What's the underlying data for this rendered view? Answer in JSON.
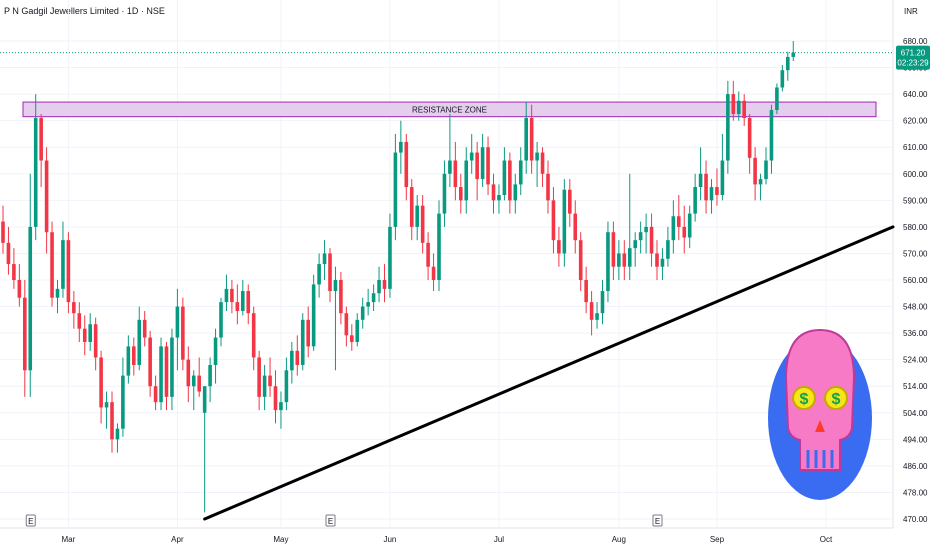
{
  "header": {
    "title": "P N Gadgil Jewellers Limited · 1D · NSE",
    "currency": "INR"
  },
  "price_tag": {
    "price": "671.20",
    "countdown": "02:23:29",
    "color": "#089981"
  },
  "colors": {
    "up": "#089981",
    "down": "#f23645",
    "zone_fill": "#e1c6ea",
    "zone_border": "#9c27b0",
    "trendline": "#000000"
  },
  "annotations": {
    "zone_label": "RESISTANCE ZONE",
    "event_marker": "E"
  },
  "decoration": {
    "sticker": "skull-with-dollar-eyes-icon"
  },
  "chart_data": {
    "type": "candlestick",
    "title": "P N Gadgil Jewellers Limited · 1D · NSE",
    "y_unit": "INR",
    "y_ticks": [
      470,
      478,
      486,
      494,
      504,
      514,
      524,
      536,
      548,
      560,
      570,
      580,
      590,
      600,
      610,
      620,
      640,
      660,
      680
    ],
    "x_ticks": [
      {
        "label": "Mar",
        "index": 12
      },
      {
        "label": "Apr",
        "index": 32
      },
      {
        "label": "May",
        "index": 51
      },
      {
        "label": "Jun",
        "index": 71
      },
      {
        "label": "Jul",
        "index": 91
      },
      {
        "label": "Aug",
        "index": 113
      },
      {
        "label": "Sep",
        "index": 131
      },
      {
        "label": "Oct",
        "index": 151
      }
    ],
    "resistance_zone": {
      "low": 623,
      "high": 634,
      "label": "RESISTANCE ZONE"
    },
    "trendline": [
      {
        "index": 37,
        "price": 470
      },
      {
        "index": 159,
        "price": 580
      }
    ],
    "earnings_markers": [
      5,
      60,
      120
    ],
    "last_price": 671.2,
    "candles": [
      {
        "o": 582,
        "h": 588,
        "l": 570,
        "c": 574
      },
      {
        "o": 574,
        "h": 580,
        "l": 562,
        "c": 566
      },
      {
        "o": 566,
        "h": 572,
        "l": 556,
        "c": 560
      },
      {
        "o": 560,
        "h": 566,
        "l": 548,
        "c": 552
      },
      {
        "o": 552,
        "h": 560,
        "l": 510,
        "c": 520
      },
      {
        "o": 520,
        "h": 600,
        "l": 510,
        "c": 580
      },
      {
        "o": 580,
        "h": 640,
        "l": 575,
        "c": 622
      },
      {
        "o": 622,
        "h": 625,
        "l": 595,
        "c": 605
      },
      {
        "o": 605,
        "h": 610,
        "l": 570,
        "c": 578
      },
      {
        "o": 578,
        "h": 582,
        "l": 548,
        "c": 552
      },
      {
        "o": 552,
        "h": 560,
        "l": 545,
        "c": 556
      },
      {
        "o": 556,
        "h": 582,
        "l": 552,
        "c": 575
      },
      {
        "o": 575,
        "h": 578,
        "l": 545,
        "c": 550
      },
      {
        "o": 550,
        "h": 555,
        "l": 538,
        "c": 545
      },
      {
        "o": 545,
        "h": 550,
        "l": 532,
        "c": 538
      },
      {
        "o": 538,
        "h": 544,
        "l": 526,
        "c": 532
      },
      {
        "o": 532,
        "h": 545,
        "l": 528,
        "c": 540
      },
      {
        "o": 540,
        "h": 543,
        "l": 520,
        "c": 525
      },
      {
        "o": 525,
        "h": 528,
        "l": 500,
        "c": 506
      },
      {
        "o": 506,
        "h": 512,
        "l": 498,
        "c": 508
      },
      {
        "o": 508,
        "h": 512,
        "l": 490,
        "c": 494
      },
      {
        "o": 494,
        "h": 500,
        "l": 490,
        "c": 498
      },
      {
        "o": 498,
        "h": 525,
        "l": 495,
        "c": 518
      },
      {
        "o": 518,
        "h": 535,
        "l": 515,
        "c": 530
      },
      {
        "o": 530,
        "h": 534,
        "l": 518,
        "c": 522
      },
      {
        "o": 522,
        "h": 548,
        "l": 520,
        "c": 542
      },
      {
        "o": 542,
        "h": 546,
        "l": 530,
        "c": 534
      },
      {
        "o": 534,
        "h": 537,
        "l": 510,
        "c": 514
      },
      {
        "o": 514,
        "h": 518,
        "l": 505,
        "c": 508
      },
      {
        "o": 508,
        "h": 534,
        "l": 505,
        "c": 530
      },
      {
        "o": 530,
        "h": 532,
        "l": 505,
        "c": 510
      },
      {
        "o": 510,
        "h": 538,
        "l": 505,
        "c": 534
      },
      {
        "o": 534,
        "h": 556,
        "l": 520,
        "c": 548
      },
      {
        "o": 548,
        "h": 552,
        "l": 520,
        "c": 524
      },
      {
        "o": 524,
        "h": 530,
        "l": 508,
        "c": 514
      },
      {
        "o": 514,
        "h": 520,
        "l": 505,
        "c": 518
      },
      {
        "o": 518,
        "h": 525,
        "l": 510,
        "c": 512
      },
      {
        "o": 504,
        "h": 514,
        "l": 472,
        "c": 514
      },
      {
        "o": 514,
        "h": 525,
        "l": 508,
        "c": 522
      },
      {
        "o": 522,
        "h": 538,
        "l": 515,
        "c": 534
      },
      {
        "o": 534,
        "h": 552,
        "l": 530,
        "c": 550
      },
      {
        "o": 550,
        "h": 562,
        "l": 546,
        "c": 556
      },
      {
        "o": 556,
        "h": 560,
        "l": 545,
        "c": 550
      },
      {
        "o": 550,
        "h": 558,
        "l": 540,
        "c": 546
      },
      {
        "o": 546,
        "h": 560,
        "l": 544,
        "c": 555
      },
      {
        "o": 555,
        "h": 558,
        "l": 540,
        "c": 545
      },
      {
        "o": 545,
        "h": 548,
        "l": 520,
        "c": 525
      },
      {
        "o": 525,
        "h": 528,
        "l": 505,
        "c": 510
      },
      {
        "o": 510,
        "h": 522,
        "l": 505,
        "c": 518
      },
      {
        "o": 518,
        "h": 525,
        "l": 510,
        "c": 514
      },
      {
        "o": 514,
        "h": 520,
        "l": 500,
        "c": 505
      },
      {
        "o": 505,
        "h": 512,
        "l": 498,
        "c": 508
      },
      {
        "o": 508,
        "h": 525,
        "l": 505,
        "c": 520
      },
      {
        "o": 520,
        "h": 532,
        "l": 515,
        "c": 528
      },
      {
        "o": 528,
        "h": 535,
        "l": 518,
        "c": 522
      },
      {
        "o": 522,
        "h": 545,
        "l": 520,
        "c": 542
      },
      {
        "o": 542,
        "h": 548,
        "l": 525,
        "c": 530
      },
      {
        "o": 530,
        "h": 562,
        "l": 528,
        "c": 558
      },
      {
        "o": 558,
        "h": 570,
        "l": 552,
        "c": 566
      },
      {
        "o": 566,
        "h": 575,
        "l": 560,
        "c": 570
      },
      {
        "o": 570,
        "h": 572,
        "l": 550,
        "c": 555
      },
      {
        "o": 555,
        "h": 565,
        "l": 520,
        "c": 560
      },
      {
        "o": 560,
        "h": 563,
        "l": 540,
        "c": 545
      },
      {
        "o": 545,
        "h": 548,
        "l": 530,
        "c": 535
      },
      {
        "o": 535,
        "h": 540,
        "l": 528,
        "c": 532
      },
      {
        "o": 532,
        "h": 545,
        "l": 530,
        "c": 542
      },
      {
        "o": 542,
        "h": 552,
        "l": 538,
        "c": 548
      },
      {
        "o": 548,
        "h": 556,
        "l": 544,
        "c": 550
      },
      {
        "o": 550,
        "h": 558,
        "l": 546,
        "c": 554
      },
      {
        "o": 554,
        "h": 565,
        "l": 550,
        "c": 560
      },
      {
        "o": 560,
        "h": 566,
        "l": 550,
        "c": 556
      },
      {
        "o": 556,
        "h": 585,
        "l": 552,
        "c": 580
      },
      {
        "o": 580,
        "h": 615,
        "l": 575,
        "c": 608
      },
      {
        "o": 608,
        "h": 620,
        "l": 600,
        "c": 612
      },
      {
        "o": 612,
        "h": 615,
        "l": 590,
        "c": 595
      },
      {
        "o": 595,
        "h": 598,
        "l": 575,
        "c": 580
      },
      {
        "o": 580,
        "h": 592,
        "l": 575,
        "c": 588
      },
      {
        "o": 588,
        "h": 592,
        "l": 570,
        "c": 574
      },
      {
        "o": 574,
        "h": 578,
        "l": 560,
        "c": 565
      },
      {
        "o": 565,
        "h": 570,
        "l": 555,
        "c": 560
      },
      {
        "o": 560,
        "h": 590,
        "l": 555,
        "c": 585
      },
      {
        "o": 585,
        "h": 605,
        "l": 580,
        "c": 600
      },
      {
        "o": 600,
        "h": 625,
        "l": 595,
        "c": 605
      },
      {
        "o": 605,
        "h": 612,
        "l": 590,
        "c": 595
      },
      {
        "o": 595,
        "h": 600,
        "l": 585,
        "c": 590
      },
      {
        "o": 590,
        "h": 610,
        "l": 585,
        "c": 605
      },
      {
        "o": 605,
        "h": 615,
        "l": 600,
        "c": 608
      },
      {
        "o": 608,
        "h": 612,
        "l": 590,
        "c": 598
      },
      {
        "o": 598,
        "h": 615,
        "l": 595,
        "c": 610
      },
      {
        "o": 610,
        "h": 614,
        "l": 592,
        "c": 596
      },
      {
        "o": 596,
        "h": 600,
        "l": 585,
        "c": 590
      },
      {
        "o": 590,
        "h": 596,
        "l": 585,
        "c": 592
      },
      {
        "o": 592,
        "h": 610,
        "l": 590,
        "c": 605
      },
      {
        "o": 605,
        "h": 608,
        "l": 585,
        "c": 590
      },
      {
        "o": 590,
        "h": 600,
        "l": 585,
        "c": 596
      },
      {
        "o": 596,
        "h": 610,
        "l": 592,
        "c": 605
      },
      {
        "o": 605,
        "h": 634,
        "l": 600,
        "c": 622
      },
      {
        "o": 622,
        "h": 632,
        "l": 600,
        "c": 605
      },
      {
        "o": 605,
        "h": 612,
        "l": 595,
        "c": 608
      },
      {
        "o": 608,
        "h": 610,
        "l": 595,
        "c": 600
      },
      {
        "o": 600,
        "h": 605,
        "l": 585,
        "c": 590
      },
      {
        "o": 590,
        "h": 595,
        "l": 570,
        "c": 575
      },
      {
        "o": 575,
        "h": 580,
        "l": 565,
        "c": 570
      },
      {
        "o": 570,
        "h": 598,
        "l": 565,
        "c": 594
      },
      {
        "o": 594,
        "h": 598,
        "l": 580,
        "c": 585
      },
      {
        "o": 585,
        "h": 590,
        "l": 570,
        "c": 575
      },
      {
        "o": 575,
        "h": 578,
        "l": 555,
        "c": 560
      },
      {
        "o": 560,
        "h": 565,
        "l": 545,
        "c": 550
      },
      {
        "o": 550,
        "h": 555,
        "l": 535,
        "c": 542
      },
      {
        "o": 542,
        "h": 550,
        "l": 538,
        "c": 545
      },
      {
        "o": 545,
        "h": 560,
        "l": 540,
        "c": 555
      },
      {
        "o": 555,
        "h": 582,
        "l": 550,
        "c": 578
      },
      {
        "o": 578,
        "h": 582,
        "l": 560,
        "c": 565
      },
      {
        "o": 565,
        "h": 575,
        "l": 560,
        "c": 570
      },
      {
        "o": 570,
        "h": 575,
        "l": 560,
        "c": 565
      },
      {
        "o": 565,
        "h": 600,
        "l": 560,
        "c": 572
      },
      {
        "o": 572,
        "h": 578,
        "l": 565,
        "c": 575
      },
      {
        "o": 575,
        "h": 582,
        "l": 570,
        "c": 578
      },
      {
        "o": 578,
        "h": 585,
        "l": 570,
        "c": 580
      },
      {
        "o": 580,
        "h": 585,
        "l": 565,
        "c": 570
      },
      {
        "o": 570,
        "h": 575,
        "l": 560,
        "c": 565
      },
      {
        "o": 565,
        "h": 572,
        "l": 560,
        "c": 568
      },
      {
        "o": 568,
        "h": 580,
        "l": 565,
        "c": 575
      },
      {
        "o": 575,
        "h": 590,
        "l": 570,
        "c": 584
      },
      {
        "o": 584,
        "h": 592,
        "l": 575,
        "c": 580
      },
      {
        "o": 580,
        "h": 588,
        "l": 570,
        "c": 576
      },
      {
        "o": 576,
        "h": 588,
        "l": 572,
        "c": 585
      },
      {
        "o": 585,
        "h": 600,
        "l": 582,
        "c": 595
      },
      {
        "o": 595,
        "h": 610,
        "l": 590,
        "c": 600
      },
      {
        "o": 600,
        "h": 605,
        "l": 585,
        "c": 590
      },
      {
        "o": 590,
        "h": 598,
        "l": 585,
        "c": 595
      },
      {
        "o": 595,
        "h": 602,
        "l": 588,
        "c": 592
      },
      {
        "o": 592,
        "h": 615,
        "l": 590,
        "c": 605
      },
      {
        "o": 605,
        "h": 650,
        "l": 600,
        "c": 640
      },
      {
        "o": 640,
        "h": 650,
        "l": 620,
        "c": 625
      },
      {
        "o": 625,
        "h": 642,
        "l": 620,
        "c": 635
      },
      {
        "o": 635,
        "h": 640,
        "l": 618,
        "c": 622
      },
      {
        "o": 622,
        "h": 625,
        "l": 600,
        "c": 606
      },
      {
        "o": 606,
        "h": 610,
        "l": 590,
        "c": 596
      },
      {
        "o": 596,
        "h": 600,
        "l": 590,
        "c": 598
      },
      {
        "o": 598,
        "h": 610,
        "l": 596,
        "c": 605
      },
      {
        "o": 605,
        "h": 632,
        "l": 600,
        "c": 628
      },
      {
        "o": 628,
        "h": 648,
        "l": 625,
        "c": 645
      },
      {
        "o": 645,
        "h": 662,
        "l": 642,
        "c": 658
      },
      {
        "o": 658,
        "h": 672,
        "l": 650,
        "c": 668
      },
      {
        "o": 668,
        "h": 680,
        "l": 665,
        "c": 671.2
      }
    ]
  }
}
